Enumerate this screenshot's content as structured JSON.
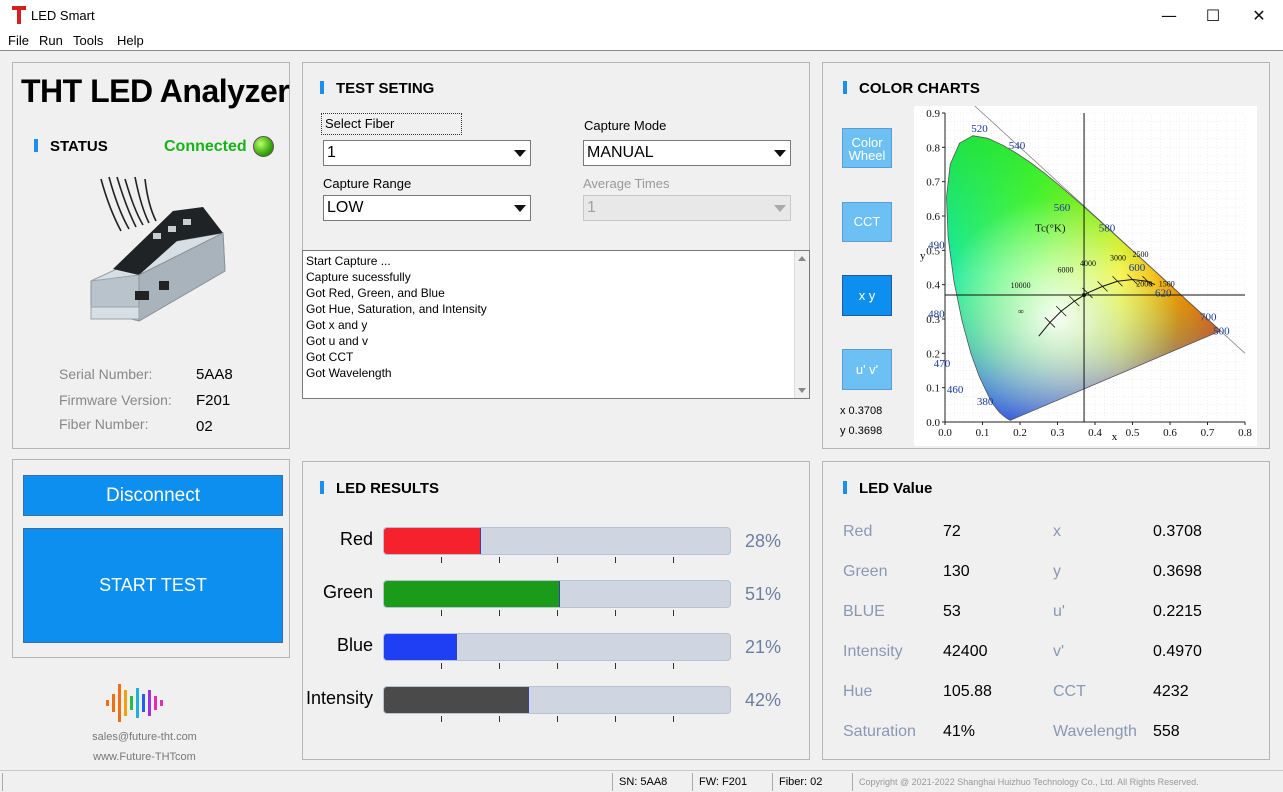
{
  "window": {
    "title": "LED Smart",
    "minimize_icon": "minimize-icon",
    "maximize_icon": "maximize-icon",
    "close_icon": "close-icon"
  },
  "menu": [
    "File",
    "Run",
    "Tools",
    "Help"
  ],
  "status_panel": {
    "title": "THT LED Analyzer",
    "section": "STATUS",
    "connection": "Connected",
    "serial_label": "Serial Number:",
    "serial_value": "5AA8",
    "firmware_label": "Firmware Version:",
    "firmware_value": "F201",
    "fiber_label": "Fiber Number:",
    "fiber_value": "02"
  },
  "actions": {
    "disconnect": "Disconnect",
    "start": "START TEST"
  },
  "footer": {
    "email": "sales@future-tht.com",
    "website": "www.Future-THTcom"
  },
  "test_setting": {
    "title": "TEST SETING",
    "fiber_label": "Select Fiber",
    "fiber_value": "1",
    "capture_mode_label": "Capture Mode",
    "capture_mode_value": "MANUAL",
    "capture_range_label": "Capture Range",
    "capture_range_value": "LOW",
    "average_label": "Average Times",
    "average_value": "1"
  },
  "log": [
    "Start Capture ...",
    "Capture sucessfully",
    "Got Red, Green, and Blue",
    "Got Hue, Saturation, and Intensity",
    "Got x and y",
    "Got u and v",
    "Got CCT",
    "Got Wavelength"
  ],
  "led_results": {
    "title": "LED RESULTS",
    "bars": [
      {
        "label": "Red",
        "percent": 28,
        "percent_text": "28%",
        "color": "#f5222d"
      },
      {
        "label": "Green",
        "percent": 51,
        "percent_text": "51%",
        "color": "#1a9c1a"
      },
      {
        "label": "Blue",
        "percent": 21,
        "percent_text": "21%",
        "color": "#1f3ff5"
      },
      {
        "label": "Intensity",
        "percent": 42,
        "percent_text": "42%",
        "color": "#4a4a4a"
      }
    ]
  },
  "color_charts": {
    "title": "COLOR CHARTS",
    "buttons": [
      {
        "label": "Color Wheel",
        "active": false
      },
      {
        "label": "CCT",
        "active": false
      },
      {
        "label": "x y",
        "active": true
      },
      {
        "label": "u' v'",
        "active": false
      }
    ],
    "readout_x": "x  0.3708",
    "readout_y": "y  0.3698",
    "chart_data": {
      "type": "scatter",
      "title": "",
      "xlabel": "x",
      "ylabel": "y",
      "xlim": [
        0.0,
        0.8
      ],
      "ylim": [
        0.0,
        0.9
      ],
      "x_ticks": [
        "0.0",
        "0.1",
        "0.2",
        "0.3",
        "0.4",
        "0.5",
        "0.6",
        "0.7",
        "0.8"
      ],
      "y_ticks": [
        "0.0",
        "0.1",
        "0.2",
        "0.3",
        "0.4",
        "0.5",
        "0.6",
        "0.7",
        "0.8",
        "0.9"
      ],
      "grid": true,
      "wavelength_labels": [
        "520",
        "540",
        "560",
        "580",
        "600",
        "620",
        "700",
        "500",
        "490",
        "480",
        "470",
        "460",
        "380"
      ],
      "cct_labels": [
        "Tc(°K)",
        "10000",
        "6000",
        "4000",
        "3000",
        "2500",
        "2000",
        "1500",
        "∞"
      ],
      "point": {
        "x": 0.3708,
        "y": 0.3698
      }
    }
  },
  "led_value": {
    "title": "LED Value",
    "rows": [
      {
        "l1": "Red",
        "v1": "72",
        "l2": "x",
        "v2": "0.3708"
      },
      {
        "l1": "Green",
        "v1": "130",
        "l2": "y",
        "v2": "0.3698"
      },
      {
        "l1": "BLUE",
        "v1": "53",
        "l2": "u'",
        "v2": "0.2215"
      },
      {
        "l1": "Intensity",
        "v1": "42400",
        "l2": "v'",
        "v2": "0.4970"
      },
      {
        "l1": "Hue",
        "v1": "105.88",
        "l2": "CCT",
        "v2": "4232"
      },
      {
        "l1": "Saturation",
        "v1": "41%",
        "l2": "Wavelength",
        "v2": "558"
      }
    ]
  },
  "statusbar": {
    "sn": "SN:    5AA8",
    "fw": "FW:   F201",
    "fiber": "Fiber:    02",
    "copyright": "Copyright @ 2021-2022 Shanghai Huizhuo Technology Co., Ltd. All Rights Reserved."
  }
}
